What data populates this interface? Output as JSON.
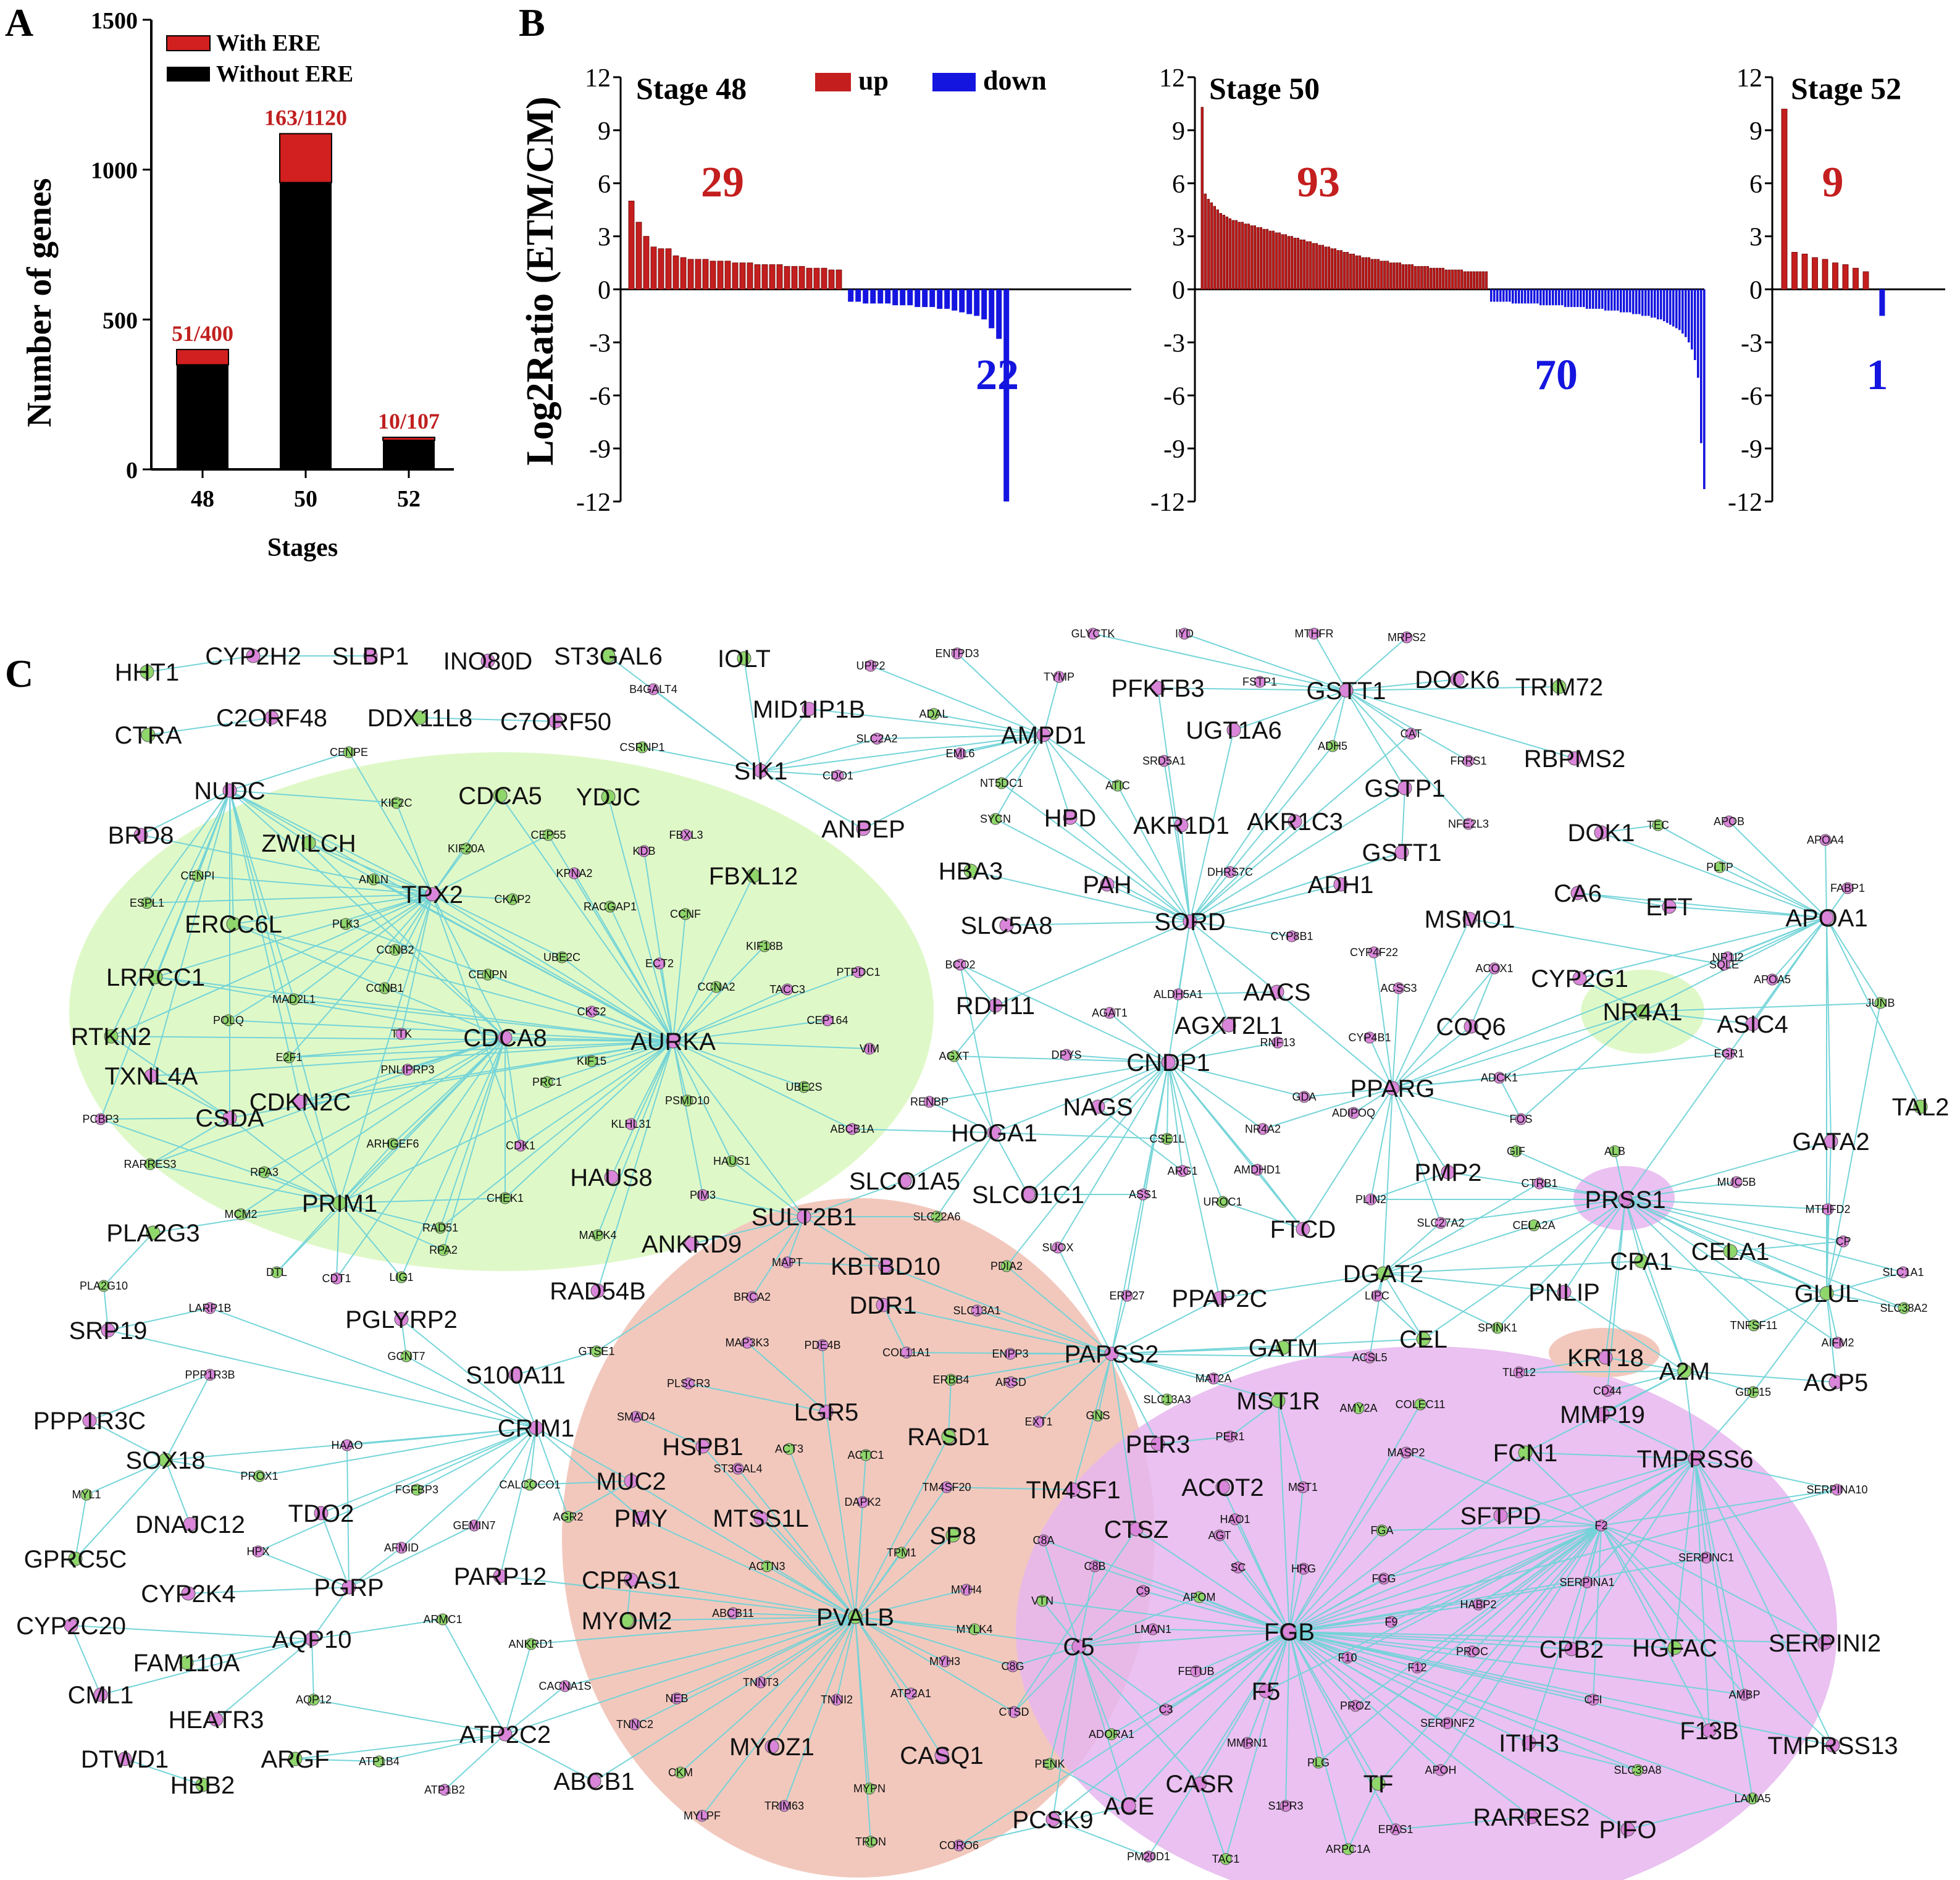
{
  "panels": {
    "a": "A",
    "b": "B",
    "c": "C"
  },
  "colors": {
    "up": "#c41e1e",
    "down": "#1515e0",
    "with_ere": "#d21f1f",
    "without_ere": "#000000",
    "edge": "#6fd3d8",
    "node_green": "#8fd66b",
    "node_pink": "#d985d9",
    "cluster_green": "#dff8c8",
    "cluster_red": "#f2c8bd",
    "cluster_purple": "#ecc8f0"
  },
  "chart_data": [
    {
      "type": "bar",
      "subtype": "stacked",
      "panel": "A",
      "categories": [
        "48",
        "50",
        "52"
      ],
      "series": [
        {
          "name": "With ERE",
          "values": [
            51,
            163,
            10
          ]
        },
        {
          "name": "Without ERE",
          "values": [
            349,
            957,
            97
          ]
        }
      ],
      "bar_labels": [
        "51/400",
        "163/1120",
        "10/107"
      ],
      "xlabel": "Stages",
      "ylabel": "Number of genes",
      "ylim": [
        0,
        1500
      ],
      "yticks": [
        "0",
        "500",
        "1000",
        "1500"
      ],
      "legend_position": "top-left"
    },
    {
      "type": "bar",
      "panel": "B",
      "ylabel": "Log2Ratio (ETM/CM)",
      "ylim": [
        -12,
        12
      ],
      "yticks": [
        "12",
        "9",
        "6",
        "3",
        "0",
        "-3",
        "-6",
        "-9",
        "-12"
      ],
      "legend": [
        "up",
        "down"
      ],
      "legend_position": "top",
      "stages": [
        {
          "title": "Stage 48",
          "up_count": "29",
          "down_count": "22",
          "up_values": [
            5.0,
            3.8,
            3.0,
            2.4,
            2.3,
            2.3,
            1.9,
            1.8,
            1.7,
            1.7,
            1.7,
            1.6,
            1.6,
            1.6,
            1.5,
            1.5,
            1.5,
            1.4,
            1.4,
            1.4,
            1.4,
            1.3,
            1.3,
            1.3,
            1.2,
            1.2,
            1.2,
            1.1,
            1.1
          ],
          "down_values": [
            -0.7,
            -0.7,
            -0.8,
            -0.8,
            -0.8,
            -0.8,
            -0.9,
            -0.9,
            -0.9,
            -1.0,
            -1.0,
            -1.0,
            -1.1,
            -1.1,
            -1.2,
            -1.3,
            -1.4,
            -1.5,
            -1.7,
            -2.2,
            -2.8,
            -12.0
          ]
        },
        {
          "title": "Stage 50",
          "up_count": "93",
          "down_count": "70",
          "up_values": [
            10.3,
            5.4,
            5.1,
            4.9,
            4.7,
            4.5,
            4.3,
            4.2,
            4.1,
            4.0,
            3.9,
            3.9,
            3.8,
            3.8,
            3.7,
            3.7,
            3.6,
            3.6,
            3.5,
            3.5,
            3.4,
            3.4,
            3.3,
            3.3,
            3.2,
            3.2,
            3.1,
            3.1,
            3.0,
            3.0,
            2.9,
            2.9,
            2.8,
            2.8,
            2.7,
            2.7,
            2.6,
            2.6,
            2.5,
            2.5,
            2.4,
            2.4,
            2.3,
            2.3,
            2.2,
            2.2,
            2.1,
            2.1,
            2.0,
            2.0,
            1.9,
            1.9,
            1.8,
            1.8,
            1.8,
            1.7,
            1.7,
            1.7,
            1.6,
            1.6,
            1.6,
            1.5,
            1.5,
            1.5,
            1.5,
            1.4,
            1.4,
            1.4,
            1.4,
            1.3,
            1.3,
            1.3,
            1.3,
            1.3,
            1.2,
            1.2,
            1.2,
            1.2,
            1.2,
            1.1,
            1.1,
            1.1,
            1.1,
            1.1,
            1.1,
            1.0,
            1.0,
            1.0,
            1.0,
            1.0,
            1.0,
            1.0,
            1.0
          ],
          "down_values": [
            -0.7,
            -0.7,
            -0.7,
            -0.7,
            -0.7,
            -0.7,
            -0.7,
            -0.8,
            -0.8,
            -0.8,
            -0.8,
            -0.8,
            -0.8,
            -0.8,
            -0.8,
            -0.8,
            -0.9,
            -0.9,
            -0.9,
            -0.9,
            -0.9,
            -0.9,
            -0.9,
            -0.9,
            -1.0,
            -1.0,
            -1.0,
            -1.0,
            -1.0,
            -1.0,
            -1.0,
            -1.1,
            -1.1,
            -1.1,
            -1.1,
            -1.1,
            -1.1,
            -1.2,
            -1.2,
            -1.2,
            -1.2,
            -1.2,
            -1.3,
            -1.3,
            -1.3,
            -1.3,
            -1.4,
            -1.4,
            -1.4,
            -1.5,
            -1.5,
            -1.5,
            -1.6,
            -1.6,
            -1.7,
            -1.7,
            -1.8,
            -1.9,
            -2.0,
            -2.1,
            -2.2,
            -2.3,
            -2.5,
            -2.7,
            -3.0,
            -3.4,
            -4.0,
            -5.0,
            -8.7,
            -11.3
          ]
        },
        {
          "title": "Stage 52",
          "up_count": "9",
          "down_count": "1",
          "up_values": [
            10.2,
            2.1,
            2.0,
            1.8,
            1.7,
            1.5,
            1.4,
            1.2,
            1.0
          ],
          "down_values": [
            -1.5
          ]
        }
      ]
    }
  ],
  "network": {
    "labels": {
      "HHT1": "HHT1",
      "CYP2H2": "CYP2H2",
      "SLBP1": "SLBP1",
      "INO80D": "INO80D",
      "ST3GAL6": "ST3GAL6",
      "IOLT": "IOLT",
      "CTRA": "CTRA",
      "C2ORF48": "C2ORF48",
      "DDX11L8": "DDX11L8",
      "C7ORF50": "C7ORF50",
      "MID1IP1B": "MID1IP1B",
      "B4GALT4": "B4GALT4",
      "UPP2": "UPP2",
      "ENTPD3": "ENTPD3",
      "GLYCTK": "GLYCTK",
      "IYD": "IYD",
      "MTHFR": "MTHFR",
      "MRPS2": "MRPS2",
      "TYMP": "TYMP",
      "PFKFB3": "PFKFB3",
      "FSTP1": "FSTP1",
      "GSTT1": "GSTT1",
      "DOCK6": "DOCK6",
      "TRIM72": "TRIM72",
      "ADAL": "ADAL",
      "SLC2A2": "SLC2A2",
      "AMPD1": "AMPD1",
      "UGT1A6": "UGT1A6",
      "CAT": "CAT",
      "CSRNP1": "CSRNP1",
      "CENPE": "CENPE",
      "EML6": "EML6",
      "SRD5A1": "SRD5A1",
      "ADH5": "ADH5",
      "FRRS1": "FRRS1",
      "RBPMS2": "RBPMS2",
      "SIK1": "SIK1",
      "CDO1": "CDO1",
      "NT5DC1": "NT5DC1",
      "ATIC": "ATIC",
      "GSTP1": "GSTP1",
      "NUDC": "NUDC",
      "CDCA5": "CDCA5",
      "YDJC": "YDJC",
      "KIF2C": "KIF2C",
      "ANPEP": "ANPEP",
      "SYCN": "SYCN",
      "HPD": "HPD",
      "AKR1D1": "AKR1D1",
      "AKR1C3": "AKR1C3",
      "NFE2L3": "NFE2L3",
      "DOK1": "DOK1",
      "TEC": "TEC",
      "APOB": "APOB",
      "APOA4": "APOA4",
      "BRD8": "BRD8",
      "ZWILCH": "ZWILCH",
      "CEP55": "CEP55",
      "FBXL3": "FBXL3",
      "KIF20A": "KIF20A",
      "KDB": "KDB",
      "GSTT1b": "GSTT1",
      "CENPI": "CENPI",
      "ANLN": "ANLN",
      "KPNA2": "KPNA2",
      "FBXL12": "FBXL12",
      "HBA3": "HBA3",
      "PAH": "PAH",
      "DHRS7C": "DHRS7C",
      "ADH1": "ADH1",
      "PLTP": "PLTP",
      "ESPL1": "ESPL1",
      "CKAP2": "CKAP2",
      "TPX2": "TPX2",
      "ERCC6L": "ERCC6L",
      "PLK3": "PLK3",
      "RACGAP1": "RACGAP1",
      "CA6": "CA6",
      "EFT": "EFT",
      "FABP1": "FABP1",
      "CCNF": "CCNF",
      "SLC5A8": "SLC5A8",
      "SORD": "SORD",
      "MSMO1": "MSMO1",
      "APOA1": "APOA1",
      "CCNB2": "CCNB2",
      "UBE2C": "UBE2C",
      "KIF18B": "KIF18B",
      "BCO2": "BCO2",
      "CYP8B1": "CYP8B1",
      "CYP4F22": "CYP4F22",
      "NR1I2": "NR1I2",
      "LRRCC1": "LRRCC1",
      "CENPN": "CENPN",
      "ECT2": "ECT2",
      "PTPDC1": "PTPDC1",
      "ACOX1": "ACOX1",
      "SQLE": "SQLE",
      "CCNB1": "CCNB1",
      "CCNA2": "CCNA2",
      "TACC3": "TACC3",
      "RDH11": "RDH11",
      "ALDH5A1": "ALDH5A1",
      "AACS": "AACS",
      "ACSS3": "ACSS3",
      "CYP2G1": "CYP2G1",
      "APOA5": "APOA5",
      "MAD2L1": "MAD2L1",
      "JUNB": "JUNB",
      "POLQ": "POLQ",
      "TTK": "TTK",
      "CEP164": "CEP164",
      "AGXT2L1": "AGXT2L1",
      "AGAT1": "AGAT1",
      "RNF13": "RNF13",
      "CYP4B1": "CYP4B1",
      "COQ6": "COQ6",
      "NR4A1": "NR4A1",
      "ASIC4": "ASIC4",
      "RTKN2": "RTKN2",
      "CDCA8": "CDCA8",
      "AURKA": "AURKA",
      "CKS2": "CKS2",
      "VIM": "VIM",
      "E2F1": "E2F1",
      "KIF15": "KIF15",
      "PNLIPRP3": "PNLIPRP3",
      "AGXT": "AGXT",
      "DPYS": "DPYS",
      "CNDP1": "CNDP1",
      "EGR1": "EGR1",
      "TXNL4A": "TXNL4A",
      "PRC1": "PRC1",
      "UBE2S": "UBE2S",
      "PSMD10": "PSMD10",
      "PPARG": "PPARG",
      "ADCK1": "ADCK1",
      "TAL2": "TAL2",
      "CDKN2C": "CDKN2C",
      "CSDA": "CSDA",
      "PCBP3": "PCBP3",
      "GDA": "GDA",
      "NAGS": "NAGS",
      "FOS": "FOS",
      "ARHGEF6": "ARHGEF6",
      "KLHL31": "KLHL31",
      "RENBP": "RENBP",
      "HOGA1": "HOGA1",
      "ABCB1A": "ABCB1A",
      "CDK1": "CDK1",
      "CSE1L": "CSE1L",
      "NR4A2": "NR4A2",
      "ADIPOQ": "ADIPOQ",
      "GATA2": "GATA2",
      "RARRES3": "RARRES3",
      "HAUS1": "HAUS1",
      "GIF": "GIF",
      "ALB": "ALB",
      "HAUS8": "HAUS8",
      "RPA3": "RPA3",
      "AMDHD1": "AMDHD1",
      "ARG1": "ARG1",
      "PMP2": "PMP2",
      "CTRB1": "CTRB1",
      "MUC5B": "MUC5B",
      "SLCO1A5": "SLCO1A5",
      "PRIM1": "PRIM1",
      "MCM2": "MCM2",
      "CHEK1": "CHEK1",
      "PIM3": "PIM3",
      "SLCO1C1": "SLCO1C1",
      "ASS1": "ASS1",
      "UROC1": "UROC1",
      "PLIN2": "PLIN2",
      "PRSS1": "PRSS1",
      "MTHFD2": "MTHFD2",
      "RAD51": "RAD51",
      "SLC22A6": "SLC22A6",
      "SULT2B1": "SULT2B1",
      "SLC27A2": "SLC27A2",
      "PLA2G3": "PLA2G3",
      "MAPK4": "MAPK4",
      "FTCD": "FTCD",
      "CELA2A": "CELA2A",
      "CP": "CP",
      "ANKRD9": "ANKRD9",
      "RPA2": "RPA2",
      "SUOX": "SUOX",
      "CELA1": "CELA1",
      "MAPT": "MAPT",
      "KBTBD10": "KBTBD10",
      "DGAT2": "DGAT2",
      "CPA1": "CPA1",
      "SLC1A1": "SLC1A1",
      "DTL": "DTL",
      "CDT1": "CDT1",
      "LIG1": "LIG1",
      "PLA2G10": "PLA2G10",
      "PDIA2": "PDIA2",
      "ERP27": "ERP27",
      "PPAP2C": "PPAP2C",
      "LIPC": "LIPC",
      "PNLIP": "PNLIP",
      "GLUL": "GLUL",
      "SLC38A2": "SLC38A2",
      "BRCA2": "BRCA2",
      "RAD54B": "RAD54B",
      "DDR1": "DDR1",
      "LARP1B": "LARP1B",
      "SLC13A1": "SLC13A1",
      "SRP19": "SRP19",
      "PGLYRP2": "PGLYRP2",
      "SPINK1": "SPINK1",
      "TNFSF11": "TNFSF11",
      "MAP3K3": "MAP3K3",
      "PDE4B": "PDE4B",
      "GCNT7": "GCNT7",
      "ENPP3": "ENPP3",
      "PAPSS2": "PAPSS2",
      "MAT2A": "MAT2A",
      "GATM": "GATM",
      "CEL": "CEL",
      "AIFM2": "AIFM2",
      "COL11A1": "COL11A1",
      "GTSE1": "GTSE1",
      "ERBB4": "ERBB4",
      "ACSL5": "ACSL5",
      "KRT18": "KRT18",
      "S100A11": "S100A11",
      "PPP1R3B": "PPP1R3B",
      "PLSCR3": "PLSCR3",
      "ARSD": "ARSD",
      "TLR12": "TLR12",
      "A2M": "A2M",
      "ACP5": "ACP5",
      "SLC13A3": "SLC13A3",
      "MST1R": "MST1R",
      "CD44": "CD44",
      "GDF15": "GDF15",
      "PPP1R3C": "PPP1R3C",
      "LGR5": "LGR5",
      "SMAD4": "SMAD4",
      "EXT1": "EXT1",
      "GNS": "GNS",
      "AMY2A": "AMY2A",
      "COLEC11": "COLEC11",
      "MMP19": "MMP19",
      "CRIM1": "CRIM1",
      "HSPB1": "HSPB1",
      "RASD1": "RASD1",
      "PER1": "PER1",
      "SOX18": "SOX18",
      "HAAO": "HAAO",
      "ACT3": "ACT3",
      "PER3": "PER3",
      "MASP2": "MASP2",
      "FCN1": "FCN1",
      "TMPRSS6": "TMPRSS6",
      "ST3GAL4": "ST3GAL4",
      "ACTC1": "ACTC1",
      "MYL1": "MYL1",
      "PROX1": "PROX1",
      "MUC2": "MUC2",
      "MST1": "MST1",
      "SERPINA10": "SERPINA10",
      "FGFBP3": "FGFBP3",
      "CALCOCO1": "CALCOCO1",
      "TM4SF20": "TM4SF20",
      "TM4SF1": "TM4SF1",
      "ACOT2": "ACOT2",
      "DNAJC12": "DNAJC12",
      "TDO2": "TDO2",
      "PMY": "PMY",
      "MTSS1L": "MTSS1L",
      "DAPK2": "DAPK2",
      "HAO1": "HAO1",
      "SFTPD": "SFTPD",
      "GEMIN7": "GEMIN7",
      "AGR2": "AGR2",
      "SP8": "SP8",
      "CTSZ": "CTSZ",
      "FGA": "FGA",
      "F2": "F2",
      "GPRC5C": "GPRC5C",
      "HPX": "HPX",
      "AFMID": "AFMID",
      "TPM1": "TPM1",
      "C8A": "C8A",
      "AGT": "AGT",
      "SERPINC1": "SERPINC1",
      "PARP12": "PARP12",
      "CPRAS1": "CPRAS1",
      "ACTN3": "ACTN3",
      "C8B": "C8B",
      "SC": "SC",
      "HRG": "HRG",
      "CYP2K4": "CYP2K4",
      "PGRP": "PGRP",
      "FGG": "FGG",
      "SERPINA1": "SERPINA1",
      "MYH4": "MYH4",
      "C9": "C9",
      "HABP2": "HABP2",
      "ABCB11": "ABCB11",
      "VTN": "VTN",
      "APOM": "APOM",
      "CYP2C20": "CYP2C20",
      "ARMC1": "ARMC1",
      "MYOM2": "MYOM2",
      "PVALB": "PVALB",
      "MYLK4": "MYLK4",
      "F9": "F9",
      "AQP10": "AQP10",
      "C5": "C5",
      "LMAN1": "LMAN1",
      "FGB": "FGB",
      "CPB2": "CPB2",
      "HGFAC": "HGFAC",
      "SERPINI2": "SERPINI2",
      "FAM110A": "FAM110A",
      "MYH3": "MYH3",
      "C8G": "C8G",
      "F10": "F10",
      "PROC": "PROC",
      "ANKRD1": "ANKRD1",
      "F12": "F12",
      "CML1": "CML1",
      "AQP12": "AQP12",
      "TNNT3": "TNNT3",
      "FETUB": "FETUB",
      "CFI": "CFI",
      "AMBP": "AMBP",
      "CACNA1S": "CACNA1S",
      "TNNI2": "TNNI2",
      "ATP2A1": "ATP2A1",
      "C3": "C3",
      "F5": "F5",
      "HEATR3": "HEATR3",
      "PROZ": "PROZ",
      "CTSD": "CTSD",
      "TNNC2": "TNNC2",
      "NEB": "NEB",
      "SERPINF2": "SERPINF2",
      "F13B": "F13B",
      "ATP2C2": "ATP2C2",
      "DTWD1": "DTWD1",
      "ARGF": "ARGF",
      "ATP1B4": "ATP1B4",
      "ADORA1": "ADORA1",
      "MMRN1": "MMRN1",
      "ITIH3": "ITIH3",
      "TMPRSS13": "TMPRSS13",
      "MYOZ1": "MYOZ1",
      "CASQ1": "CASQ1",
      "SLC39A8": "SLC39A8",
      "PLG": "PLG",
      "APOH": "APOH",
      "PENK": "PENK",
      "HBB2": "HBB2",
      "ATP1B2": "ATP1B2",
      "ABCB1": "ABCB1",
      "CKM": "CKM",
      "CASR": "CASR",
      "TF": "TF",
      "LAMA5": "LAMA5",
      "ACE": "ACE",
      "MYPN": "MYPN",
      "TRIM63": "TRIM63",
      "MYLPF": "MYLPF",
      "S1PR3": "S1PR3",
      "PCSK9": "PCSK9",
      "EPAS1": "EPAS1",
      "RARRES2": "RARRES2",
      "PIFO": "PIFO",
      "TRDN": "TRDN",
      "CORO6": "CORO6",
      "PM20D1": "PM20D1",
      "TAC1": "TAC1",
      "ARPC1A": "ARPC1A"
    }
  }
}
